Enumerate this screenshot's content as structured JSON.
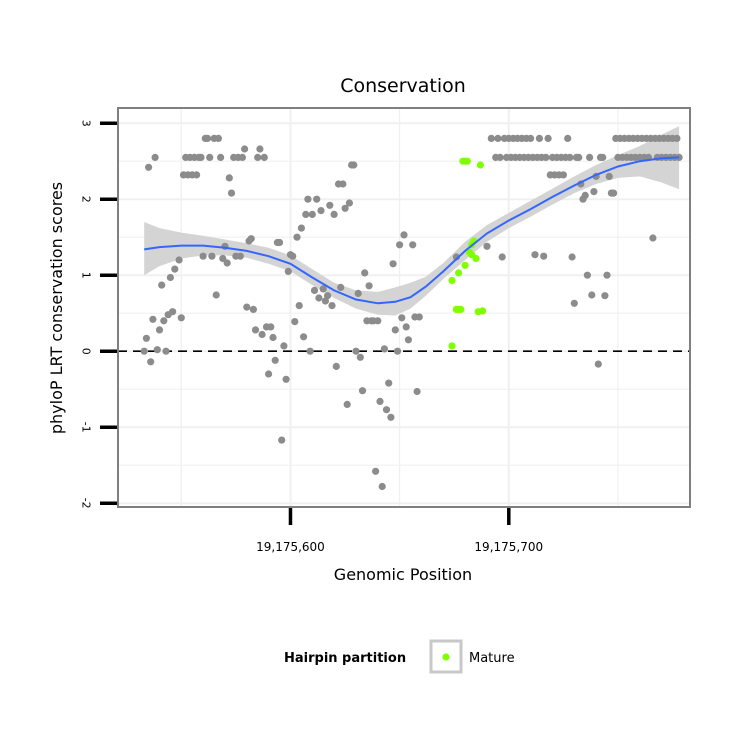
{
  "chart_data": {
    "type": "scatter",
    "title": "Conservation",
    "xlabel": "Genomic Position",
    "ylabel": "phyloP LRT conservation scores",
    "xlim": [
      19175521,
      19175783
    ],
    "ylim": [
      -2.05,
      3.2
    ],
    "x_ticks": [
      {
        "value": 19175600,
        "label": "19,175,600"
      },
      {
        "value": 19175700,
        "label": "19,175,700"
      }
    ],
    "y_ticks": [
      {
        "value": -2,
        "label": "-2"
      },
      {
        "value": -1,
        "label": "-1"
      },
      {
        "value": 0,
        "label": "0"
      },
      {
        "value": 1,
        "label": "1"
      },
      {
        "value": 2,
        "label": "2"
      },
      {
        "value": 3,
        "label": "3"
      }
    ],
    "grid": true,
    "reference_line": {
      "y": 0,
      "style": "dashed"
    },
    "legend": {
      "title": "Hairpin partition",
      "position": "bottom",
      "entries": [
        {
          "label": "Mature",
          "color": "#7FFF00"
        }
      ]
    },
    "colors": {
      "other": "#8c8c8c",
      "mature": "#7FFF00",
      "smooth": "#3366FF",
      "band": "#d4d4d4",
      "grid": "#f0f0f0",
      "frame": "#7f7f7f"
    },
    "series": [
      {
        "points": [
          [
            19175533,
            0.0
          ],
          [
            19175534,
            0.17
          ],
          [
            19175535,
            2.42
          ],
          [
            19175536,
            -0.14
          ],
          [
            19175537,
            0.42
          ],
          [
            19175538,
            2.55
          ],
          [
            19175539,
            0.02
          ],
          [
            19175540,
            0.28
          ],
          [
            19175541,
            0.87
          ],
          [
            19175542,
            0.4
          ],
          [
            19175543,
            0.0
          ],
          [
            19175544,
            0.48
          ],
          [
            19175545,
            0.97
          ],
          [
            19175546,
            0.52
          ],
          [
            19175547,
            1.08
          ],
          [
            19175549,
            1.2
          ],
          [
            19175550,
            0.44
          ],
          [
            19175551,
            2.32
          ],
          [
            19175552,
            2.55
          ],
          [
            19175553,
            2.32
          ],
          [
            19175554,
            2.55
          ],
          [
            19175555,
            2.32
          ],
          [
            19175556,
            2.55
          ],
          [
            19175557,
            2.32
          ],
          [
            19175558,
            2.55
          ],
          [
            19175559,
            2.55
          ],
          [
            19175560,
            1.25
          ],
          [
            19175561,
            2.8
          ],
          [
            19175562,
            2.8
          ],
          [
            19175563,
            2.55
          ],
          [
            19175564,
            1.25
          ],
          [
            19175565,
            2.8
          ],
          [
            19175566,
            0.74
          ],
          [
            19175567,
            2.8
          ],
          [
            19175568,
            2.55
          ],
          [
            19175569,
            1.22
          ],
          [
            19175570,
            1.38
          ],
          [
            19175571,
            1.16
          ],
          [
            19175572,
            2.28
          ],
          [
            19175573,
            2.08
          ],
          [
            19175574,
            2.55
          ],
          [
            19175575,
            1.25
          ],
          [
            19175576,
            2.55
          ],
          [
            19175577,
            1.25
          ],
          [
            19175578,
            2.55
          ],
          [
            19175579,
            2.66
          ],
          [
            19175580,
            0.58
          ],
          [
            19175581,
            1.45
          ],
          [
            19175582,
            1.48
          ],
          [
            19175583,
            0.55
          ],
          [
            19175584,
            0.28
          ],
          [
            19175585,
            2.55
          ],
          [
            19175586,
            2.66
          ],
          [
            19175587,
            0.22
          ],
          [
            19175588,
            2.55
          ],
          [
            19175589,
            0.32
          ],
          [
            19175590,
            -0.3
          ],
          [
            19175591,
            0.32
          ],
          [
            19175592,
            0.18
          ],
          [
            19175593,
            -0.12
          ],
          [
            19175594,
            1.43
          ],
          [
            19175595,
            1.43
          ],
          [
            19175596,
            -1.17
          ],
          [
            19175597,
            0.07
          ],
          [
            19175598,
            -0.37
          ],
          [
            19175599,
            1.05
          ],
          [
            19175600,
            1.27
          ],
          [
            19175601,
            1.25
          ],
          [
            19175602,
            0.39
          ],
          [
            19175603,
            1.5
          ],
          [
            19175604,
            0.6
          ],
          [
            19175605,
            1.62
          ],
          [
            19175606,
            0.19
          ],
          [
            19175607,
            1.8
          ],
          [
            19175608,
            2.0
          ],
          [
            19175609,
            0.0
          ],
          [
            19175610,
            1.8
          ],
          [
            19175611,
            0.8
          ],
          [
            19175612,
            2.0
          ],
          [
            19175613,
            0.7
          ],
          [
            19175614,
            1.85
          ],
          [
            19175615,
            0.82
          ],
          [
            19175616,
            0.66
          ],
          [
            19175617,
            0.73
          ],
          [
            19175618,
            1.92
          ],
          [
            19175619,
            0.6
          ],
          [
            19175620,
            1.8
          ],
          [
            19175621,
            -0.2
          ],
          [
            19175622,
            2.2
          ],
          [
            19175623,
            0.84
          ],
          [
            19175624,
            2.2
          ],
          [
            19175625,
            1.88
          ],
          [
            19175626,
            -0.7
          ],
          [
            19175627,
            1.95
          ],
          [
            19175628,
            2.45
          ],
          [
            19175629,
            2.45
          ],
          [
            19175630,
            0.0
          ],
          [
            19175631,
            0.76
          ],
          [
            19175632,
            -0.08
          ],
          [
            19175633,
            -0.52
          ],
          [
            19175634,
            1.03
          ],
          [
            19175635,
            0.4
          ],
          [
            19175636,
            0.86
          ],
          [
            19175637,
            0.4
          ],
          [
            19175638,
            0.4
          ],
          [
            19175639,
            -1.58
          ],
          [
            19175640,
            0.4
          ],
          [
            19175641,
            -0.66
          ],
          [
            19175642,
            -1.78
          ],
          [
            19175643,
            0.03
          ],
          [
            19175644,
            -0.77
          ],
          [
            19175645,
            -0.42
          ],
          [
            19175646,
            -0.87
          ],
          [
            19175647,
            1.15
          ],
          [
            19175648,
            0.28
          ],
          [
            19175649,
            0.0
          ],
          [
            19175650,
            1.4
          ],
          [
            19175651,
            0.44
          ],
          [
            19175652,
            1.53
          ],
          [
            19175653,
            0.32
          ],
          [
            19175654,
            0.15
          ],
          [
            19175656,
            1.4
          ],
          [
            19175657,
            0.45
          ],
          [
            19175658,
            -0.53
          ],
          [
            19175659,
            0.45
          ],
          [
            19175676,
            1.24
          ],
          [
            19175690,
            1.38
          ],
          [
            19175692,
            2.8
          ],
          [
            19175694,
            2.55
          ],
          [
            19175695,
            2.8
          ],
          [
            19175696,
            2.55
          ],
          [
            19175697,
            1.24
          ],
          [
            19175698,
            2.8
          ],
          [
            19175699,
            2.55
          ],
          [
            19175700,
            2.8
          ],
          [
            19175701,
            2.55
          ],
          [
            19175702,
            2.8
          ],
          [
            19175703,
            2.55
          ],
          [
            19175704,
            2.8
          ],
          [
            19175705,
            2.55
          ],
          [
            19175706,
            2.8
          ],
          [
            19175707,
            2.55
          ],
          [
            19175708,
            2.8
          ],
          [
            19175709,
            2.55
          ],
          [
            19175710,
            2.8
          ],
          [
            19175711,
            2.55
          ],
          [
            19175712,
            1.27
          ],
          [
            19175713,
            2.55
          ],
          [
            19175714,
            2.8
          ],
          [
            19175715,
            2.55
          ],
          [
            19175716,
            1.25
          ],
          [
            19175717,
            2.55
          ],
          [
            19175718,
            2.8
          ],
          [
            19175719,
            2.32
          ],
          [
            19175720,
            2.55
          ],
          [
            19175721,
            2.32
          ],
          [
            19175722,
            2.55
          ],
          [
            19175723,
            2.32
          ],
          [
            19175724,
            2.55
          ],
          [
            19175725,
            2.32
          ],
          [
            19175726,
            2.55
          ],
          [
            19175727,
            2.8
          ],
          [
            19175728,
            2.55
          ],
          [
            19175729,
            1.24
          ],
          [
            19175730,
            0.63
          ],
          [
            19175731,
            2.55
          ],
          [
            19175732,
            2.55
          ],
          [
            19175733,
            2.2
          ],
          [
            19175734,
            2.0
          ],
          [
            19175735,
            2.05
          ],
          [
            19175736,
            1.0
          ],
          [
            19175737,
            2.55
          ],
          [
            19175738,
            0.74
          ],
          [
            19175739,
            2.1
          ],
          [
            19175740,
            2.3
          ],
          [
            19175741,
            -0.17
          ],
          [
            19175742,
            2.55
          ],
          [
            19175743,
            2.55
          ],
          [
            19175744,
            0.73
          ],
          [
            19175745,
            1.0
          ],
          [
            19175746,
            2.3
          ],
          [
            19175747,
            2.08
          ],
          [
            19175748,
            2.08
          ],
          [
            19175749,
            2.8
          ],
          [
            19175750,
            2.55
          ],
          [
            19175751,
            2.8
          ],
          [
            19175752,
            2.55
          ],
          [
            19175753,
            2.8
          ],
          [
            19175754,
            2.55
          ],
          [
            19175755,
            2.8
          ],
          [
            19175756,
            2.55
          ],
          [
            19175757,
            2.8
          ],
          [
            19175758,
            2.55
          ],
          [
            19175759,
            2.8
          ],
          [
            19175760,
            2.55
          ],
          [
            19175761,
            2.8
          ],
          [
            19175762,
            2.55
          ],
          [
            19175763,
            2.8
          ],
          [
            19175764,
            2.55
          ],
          [
            19175765,
            2.8
          ],
          [
            19175766,
            1.49
          ],
          [
            19175767,
            2.8
          ],
          [
            19175768,
            2.55
          ],
          [
            19175769,
            2.8
          ],
          [
            19175770,
            2.55
          ],
          [
            19175771,
            2.8
          ],
          [
            19175772,
            2.55
          ],
          [
            19175773,
            2.8
          ],
          [
            19175774,
            2.55
          ],
          [
            19175775,
            2.8
          ],
          [
            19175776,
            2.55
          ],
          [
            19175777,
            2.8
          ],
          [
            19175778,
            2.55
          ]
        ]
      },
      {
        "name": "Mature",
        "points": [
          [
            19175674,
            0.07
          ],
          [
            19175674,
            0.93
          ],
          [
            19175676,
            0.55
          ],
          [
            19175677,
            1.03
          ],
          [
            19175677,
            0.55
          ],
          [
            19175678,
            0.55
          ],
          [
            19175679,
            2.5
          ],
          [
            19175680,
            2.5
          ],
          [
            19175680,
            1.13
          ],
          [
            19175681,
            2.5
          ],
          [
            19175682,
            1.3
          ],
          [
            19175683,
            1.4
          ],
          [
            19175683,
            1.27
          ],
          [
            19175684,
            1.45
          ],
          [
            19175685,
            1.22
          ],
          [
            19175686,
            0.52
          ],
          [
            19175687,
            2.45
          ],
          [
            19175688,
            0.53
          ]
        ]
      }
    ],
    "smooth_fit": {
      "x": [
        19175533,
        19175540,
        19175550,
        19175560,
        19175570,
        19175580,
        19175590,
        19175600,
        19175610,
        19175620,
        19175630,
        19175640,
        19175648,
        19175655,
        19175662,
        19175670,
        19175680,
        19175690,
        19175700,
        19175710,
        19175720,
        19175730,
        19175740,
        19175750,
        19175760,
        19175770,
        19175778
      ],
      "y": [
        1.34,
        1.37,
        1.39,
        1.39,
        1.36,
        1.32,
        1.25,
        1.15,
        0.97,
        0.8,
        0.68,
        0.63,
        0.65,
        0.71,
        0.85,
        1.05,
        1.32,
        1.55,
        1.72,
        1.87,
        2.03,
        2.18,
        2.32,
        2.43,
        2.5,
        2.54,
        2.55
      ],
      "lower": [
        1.0,
        1.12,
        1.22,
        1.26,
        1.26,
        1.23,
        1.15,
        1.05,
        0.87,
        0.7,
        0.56,
        0.48,
        0.47,
        0.56,
        0.73,
        0.95,
        1.2,
        1.44,
        1.62,
        1.77,
        1.93,
        2.08,
        2.2,
        2.28,
        2.3,
        2.22,
        2.13
      ],
      "upper": [
        1.7,
        1.62,
        1.56,
        1.52,
        1.47,
        1.42,
        1.36,
        1.26,
        1.08,
        0.9,
        0.8,
        0.78,
        0.84,
        0.9,
        0.98,
        1.16,
        1.44,
        1.66,
        1.82,
        1.98,
        2.14,
        2.3,
        2.45,
        2.58,
        2.7,
        2.85,
        2.96
      ]
    }
  }
}
